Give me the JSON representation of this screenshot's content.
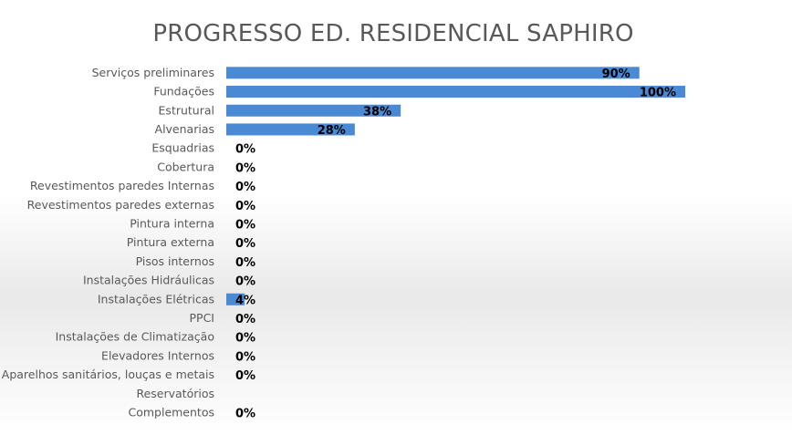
{
  "chart_data": {
    "type": "bar",
    "orientation": "horizontal",
    "title": "PROGRESSO ED. RESIDENCIAL SAPHIRO",
    "xlabel": "",
    "ylabel": "",
    "xlim": [
      0,
      100
    ],
    "grid": false,
    "legend": "none",
    "bar_color": "#4A89D4",
    "categories": [
      "Serviços preliminares",
      "Fundações",
      "Estrutural",
      "Alvenarias",
      "Esquadrias",
      "Cobertura",
      "Revestimentos paredes Internas",
      "Revestimentos paredes externas",
      "Pintura interna",
      "Pintura externa",
      "Pisos internos",
      "Instalações Hidráulicas",
      "Instalações Elétricas",
      "PPCI",
      "Instalações de Climatização",
      "Elevadores Internos",
      "Aparelhos sanitários, louças e metais",
      "Reservatórios",
      "Complementos"
    ],
    "values": [
      90,
      100,
      38,
      28,
      0,
      0,
      0,
      0,
      0,
      0,
      0,
      0,
      4,
      0,
      0,
      0,
      0,
      null,
      0
    ],
    "data_labels": [
      "90%",
      "100%",
      "38%",
      "28%",
      "0%",
      "0%",
      "0%",
      "0%",
      "0%",
      "0%",
      "0%",
      "0%",
      "4%",
      "0%",
      "0%",
      "0%",
      "0%",
      "",
      "0%"
    ]
  }
}
